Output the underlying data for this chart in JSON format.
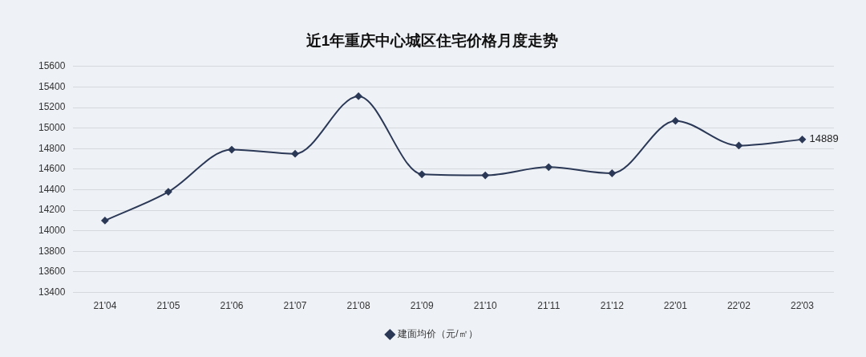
{
  "chart_data": {
    "type": "line",
    "title": "近1年重庆中心城区住宅价格月度走势",
    "categories": [
      "21'04",
      "21'05",
      "21'06",
      "21'07",
      "21'08",
      "21'09",
      "21'10",
      "21'11",
      "21'12",
      "22'01",
      "22'02",
      "22'03"
    ],
    "series": [
      {
        "name": "建面均价（元/㎡）",
        "color": "#2b3856",
        "values": [
          14100,
          14380,
          14790,
          14750,
          15310,
          14550,
          14540,
          14620,
          14560,
          15070,
          14830,
          14889
        ],
        "value_labels": [
          null,
          null,
          null,
          null,
          null,
          null,
          null,
          null,
          null,
          null,
          null,
          "14889"
        ]
      }
    ],
    "ylim": [
      13400,
      15600
    ],
    "yticks": [
      13400,
      13600,
      13800,
      14000,
      14200,
      14400,
      14600,
      14800,
      15000,
      15200,
      15400,
      15600
    ],
    "grid": "y",
    "legend": "bottom",
    "marker": "diamond",
    "line_style": "solid"
  }
}
